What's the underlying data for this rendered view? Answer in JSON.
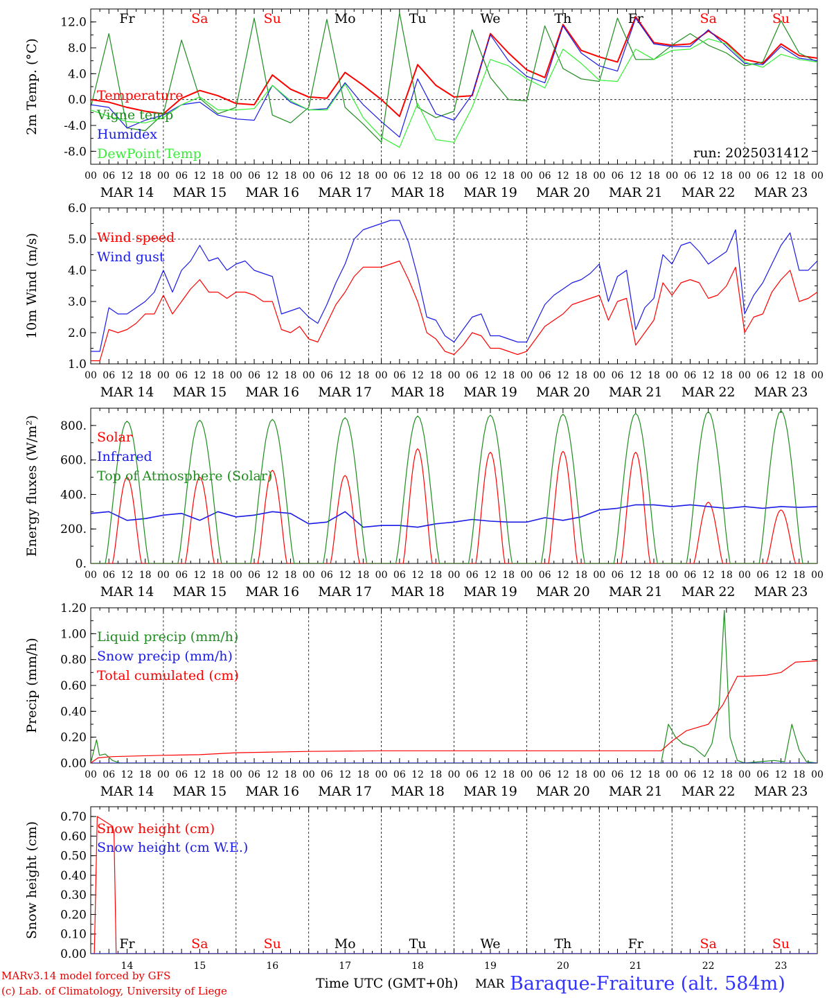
{
  "colors": {
    "red": "#ff0000",
    "blue": "#1a1ae6",
    "green": "#1e8c1e",
    "lightgreen": "#33ee33",
    "darkred": "#e60000",
    "title_blue": "#3333ff"
  },
  "time_axis": {
    "hour_labels": [
      "00",
      "06",
      "12",
      "18"
    ],
    "end_label": "00",
    "date_labels": [
      "MAR 14",
      "MAR 15",
      "MAR 16",
      "MAR 17",
      "MAR 18",
      "MAR 19",
      "MAR 20",
      "MAR 21",
      "MAR 22",
      "MAR 23"
    ],
    "weekdays": [
      "Fr",
      "Sa",
      "Su",
      "Mo",
      "Tu",
      "We",
      "Th",
      "Fr",
      "Sa",
      "Su"
    ],
    "weekday_red": [
      false,
      true,
      true,
      false,
      false,
      false,
      false,
      false,
      true,
      true
    ],
    "day_numbers": [
      "14",
      "15",
      "16",
      "17",
      "18",
      "19",
      "20",
      "21",
      "22",
      "23"
    ]
  },
  "run_label": "run: 2025031412",
  "footer": {
    "line1": "MARv3.14 model forced by GFS",
    "line2": "(c) Lab. of Climatology, University of Liege",
    "xlabel": "Time UTC (GMT+0h)",
    "month": "MAR",
    "station": "Baraque-Fraiture (alt. 584m)"
  },
  "chart_data": [
    {
      "type": "line",
      "ylabel": "2m Temp. (°C)",
      "ylim": [
        -10,
        14
      ],
      "ticks": [
        "-8.0",
        "-4.0",
        "0.0",
        "4.0",
        "8.0",
        "12.0"
      ],
      "tick_values": [
        -8,
        -4,
        0,
        4,
        8,
        12
      ],
      "hline": 0,
      "x_days": [
        0,
        0.25,
        0.5,
        0.75,
        1,
        1.25,
        1.5,
        1.75,
        2,
        2.25,
        2.5,
        2.75,
        3,
        3.25,
        3.5,
        3.75,
        4,
        4.25,
        4.5,
        4.75,
        5,
        5.25,
        5.5,
        5.75,
        6,
        6.25,
        6.5,
        6.75,
        7,
        7.25,
        7.5,
        7.75,
        8,
        8.25,
        8.5,
        8.75,
        9,
        9.25,
        9.5,
        9.75,
        10
      ],
      "series": [
        {
          "name": "Temperature",
          "color": "#ff0000",
          "values": [
            0,
            -0.4,
            -1.2,
            -1.8,
            -2.2,
            0.2,
            1.4,
            0.6,
            -0.6,
            -0.8,
            3.8,
            1.6,
            0.4,
            0.2,
            4.2,
            2.2,
            0,
            -2.6,
            5.4,
            2.2,
            0.4,
            0.6,
            10.2,
            7.2,
            4.6,
            3.4,
            11.6,
            7.6,
            6.6,
            5.8,
            12.8,
            8.8,
            8.4,
            8.6,
            10.6,
            8.8,
            6.2,
            5.6,
            8.6,
            6.8,
            6.4
          ]
        },
        {
          "name": "Vigne temp",
          "color": "#1e8c1e",
          "values": [
            -1.2,
            10.2,
            -4.4,
            -4.8,
            -2.2,
            9.2,
            0.2,
            -2.2,
            -1.2,
            12.6,
            -2.4,
            -3.6,
            -1.2,
            12.4,
            -1.2,
            -3.8,
            -6.6,
            13.4,
            -1.2,
            -2.8,
            -1.8,
            10.8,
            3.4,
            0,
            -0.2,
            11.4,
            4.8,
            3.2,
            2.8,
            12.6,
            6.2,
            6.2,
            8.4,
            10.2,
            8.4,
            7.2,
            5.2,
            5.8,
            12.2,
            7.2,
            5.8
          ]
        },
        {
          "name": "Humidex",
          "color": "#1a1ae6",
          "values": [
            -0.8,
            -1.2,
            -4.4,
            -3.2,
            -2.4,
            -0.8,
            -0.4,
            -2.4,
            -3.0,
            -3.2,
            2.2,
            -0.4,
            -1.6,
            -1.4,
            2.6,
            -0.8,
            -3.4,
            -5.8,
            3.2,
            -2.2,
            -3.2,
            0.8,
            10.0,
            6.0,
            3.6,
            2.6,
            11.4,
            7.2,
            5.2,
            4.4,
            12.6,
            8.6,
            8.2,
            8.2,
            10.8,
            8.2,
            5.6,
            5.4,
            8.2,
            6.4,
            6.0
          ]
        },
        {
          "name": "DewPoint Temp",
          "color": "#33ee33",
          "values": [
            -1.6,
            -2.6,
            -3.4,
            -3.6,
            -2.8,
            -0.8,
            0.4,
            -1.6,
            -1.6,
            -1.4,
            2.2,
            -0.2,
            -1.6,
            -1.6,
            2.4,
            -2.8,
            -5.8,
            -7.4,
            -0.6,
            -6.2,
            -6.6,
            -1.2,
            6.2,
            5.2,
            3.2,
            1.8,
            7.8,
            5.6,
            3.0,
            2.8,
            7.8,
            6.2,
            7.6,
            7.8,
            9.4,
            8.6,
            5.8,
            5.0,
            7.0,
            6.2,
            5.8
          ]
        }
      ]
    },
    {
      "type": "line",
      "ylabel": "10m Wind (m/s)",
      "ylim": [
        1.0,
        6.0
      ],
      "ticks": [
        "1.0",
        "2.0",
        "3.0",
        "4.0",
        "5.0",
        "6.0"
      ],
      "tick_values": [
        1,
        2,
        3,
        4,
        5,
        6
      ],
      "hline": 5,
      "x_days": [
        0,
        0.125,
        0.25,
        0.375,
        0.5,
        0.625,
        0.75,
        0.875,
        1,
        1.125,
        1.25,
        1.375,
        1.5,
        1.625,
        1.75,
        1.875,
        2,
        2.125,
        2.25,
        2.375,
        2.5,
        2.625,
        2.75,
        2.875,
        3,
        3.125,
        3.25,
        3.375,
        3.5,
        3.625,
        3.75,
        3.875,
        4,
        4.125,
        4.25,
        4.375,
        4.5,
        4.625,
        4.75,
        4.875,
        5,
        5.125,
        5.25,
        5.375,
        5.5,
        5.625,
        5.75,
        5.875,
        6,
        6.125,
        6.25,
        6.375,
        6.5,
        6.625,
        6.75,
        6.875,
        7,
        7.125,
        7.25,
        7.375,
        7.5,
        7.625,
        7.75,
        7.875,
        8,
        8.125,
        8.25,
        8.375,
        8.5,
        8.625,
        8.75,
        8.875,
        9,
        9.125,
        9.25,
        9.375,
        9.5,
        9.625,
        9.75,
        9.875,
        10
      ],
      "series": [
        {
          "name": "Wind speed",
          "color": "#ff0000",
          "values": [
            1.1,
            1.1,
            2.1,
            2.0,
            2.1,
            2.3,
            2.6,
            2.6,
            3.2,
            2.6,
            3.0,
            3.4,
            3.7,
            3.3,
            3.3,
            3.1,
            3.3,
            3.3,
            3.2,
            3.0,
            3.0,
            2.1,
            2.0,
            2.2,
            1.8,
            1.7,
            2.3,
            2.9,
            3.3,
            3.8,
            4.1,
            4.1,
            4.1,
            4.2,
            4.3,
            3.7,
            3.0,
            2.0,
            1.8,
            1.4,
            1.3,
            1.6,
            2.0,
            1.9,
            1.5,
            1.5,
            1.4,
            1.3,
            1.4,
            1.8,
            2.2,
            2.4,
            2.6,
            2.9,
            3.0,
            3.1,
            3.2,
            2.4,
            3.0,
            3.1,
            1.6,
            2.0,
            2.4,
            3.6,
            3.2,
            3.6,
            3.7,
            3.6,
            3.1,
            3.2,
            3.5,
            4.1,
            2.0,
            2.5,
            2.6,
            3.3,
            3.7,
            4.0,
            3.0,
            3.1,
            3.3
          ]
        },
        {
          "name": "Wind gust",
          "color": "#1a1ae6",
          "values": [
            1.4,
            1.4,
            2.8,
            2.6,
            2.6,
            2.8,
            3.0,
            3.3,
            4.0,
            3.3,
            4.0,
            4.3,
            4.8,
            4.3,
            4.4,
            4.0,
            4.2,
            4.3,
            4.0,
            3.9,
            3.8,
            2.6,
            2.7,
            2.8,
            2.5,
            2.3,
            2.9,
            3.6,
            4.2,
            5.0,
            5.3,
            5.4,
            5.5,
            5.6,
            5.6,
            4.9,
            3.8,
            2.5,
            2.4,
            1.9,
            1.7,
            2.1,
            2.5,
            2.6,
            1.9,
            1.9,
            1.8,
            1.7,
            1.7,
            2.3,
            2.9,
            3.2,
            3.4,
            3.6,
            3.7,
            3.9,
            4.2,
            3.0,
            3.8,
            4.0,
            2.1,
            2.8,
            3.1,
            4.5,
            4.2,
            4.8,
            4.9,
            4.6,
            4.2,
            4.4,
            4.6,
            5.3,
            2.6,
            3.2,
            3.6,
            4.2,
            4.8,
            5.2,
            4.0,
            4.0,
            4.3
          ]
        }
      ]
    },
    {
      "type": "line",
      "ylabel": "Energy fluxes (W/m²)",
      "ylim": [
        0,
        900
      ],
      "ticks": [
        "0.",
        "200.",
        "400.",
        "600.",
        "800."
      ],
      "tick_values": [
        0,
        200,
        400,
        600,
        800
      ],
      "solar_peak_days": [
        0.5,
        1.5,
        2.5,
        3.5,
        4.5,
        5.5,
        6.5,
        7.5,
        8.5,
        9.5
      ],
      "series": [
        {
          "name": "Solar",
          "color": "#ff0000",
          "values": [
            500,
            500,
            540,
            510,
            665,
            645,
            650,
            645,
            355,
            310
          ]
        },
        {
          "name": "Infrared",
          "color": "#1a1ae6",
          "values": [
            290,
            300,
            250,
            260,
            280,
            290,
            250,
            300,
            270,
            280,
            300,
            290,
            230,
            240,
            300,
            210,
            220,
            220,
            210,
            230,
            240,
            255,
            245,
            240,
            240,
            265,
            250,
            270,
            310,
            320,
            340,
            340,
            330,
            340,
            330,
            320,
            330,
            320,
            330,
            325,
            330
          ]
        },
        {
          "name": "Top of Atmosphere (Solar)",
          "color": "#1e8c1e",
          "values": [
            825,
            830,
            835,
            845,
            855,
            860,
            865,
            870,
            880,
            885
          ]
        }
      ]
    },
    {
      "type": "line",
      "ylabel": "Precip (mm/h)",
      "ylim": [
        0,
        1.2
      ],
      "ticks": [
        "0.00",
        "0.20",
        "0.40",
        "0.60",
        "0.80",
        "1.00",
        "1.20"
      ],
      "tick_values": [
        0,
        0.2,
        0.4,
        0.6,
        0.8,
        1.0,
        1.2
      ],
      "series": [
        {
          "name": "Liquid precip (mm/h)",
          "color": "#1e8c1e",
          "x": [
            0,
            0.08,
            0.12,
            0.2,
            0.3,
            0.4,
            1,
            2,
            3,
            4,
            5,
            6,
            7,
            7.85,
            7.95,
            8.05,
            8.15,
            8.3,
            8.45,
            8.55,
            8.65,
            8.72,
            8.8,
            8.9,
            9.0,
            9.2,
            9.4,
            9.55,
            9.65,
            9.75,
            9.85,
            10
          ],
          "values": [
            0,
            0.18,
            0.06,
            0.07,
            0.02,
            0,
            0,
            0,
            0,
            0,
            0,
            0,
            0,
            0,
            0.3,
            0.2,
            0.15,
            0.12,
            0.05,
            0.15,
            0.45,
            1.18,
            0.2,
            0.02,
            0,
            0.01,
            0.02,
            0.01,
            0.3,
            0.1,
            0.01,
            0
          ]
        },
        {
          "name": "Snow precip (mm/h)",
          "color": "#1a1ae6",
          "x": [
            0,
            10
          ],
          "values": [
            0,
            0
          ]
        },
        {
          "name": "Total cumulated (cm)",
          "color": "#ff0000",
          "x": [
            0,
            0.1,
            0.3,
            1,
            1.5,
            2,
            3,
            4,
            5,
            6,
            7,
            7.85,
            8,
            8.2,
            8.5,
            8.7,
            8.9,
            9,
            9.3,
            9.5,
            9.7,
            10
          ],
          "values": [
            0,
            0.04,
            0.05,
            0.06,
            0.065,
            0.08,
            0.09,
            0.095,
            0.095,
            0.095,
            0.095,
            0.095,
            0.17,
            0.25,
            0.3,
            0.45,
            0.67,
            0.67,
            0.68,
            0.7,
            0.78,
            0.79
          ]
        }
      ]
    },
    {
      "type": "line",
      "ylabel": "Snow height (cm)",
      "ylim": [
        0,
        0.75
      ],
      "ticks": [
        "0.00",
        "0.10",
        "0.20",
        "0.30",
        "0.40",
        "0.50",
        "0.60",
        "0.70"
      ],
      "tick_values": [
        0,
        0.1,
        0.2,
        0.3,
        0.4,
        0.5,
        0.6,
        0.7
      ],
      "series": [
        {
          "name": "Snow height (cm)",
          "color": "#ff0000",
          "x": [
            0,
            0.05,
            0.09,
            0.3,
            0.32,
            0.35,
            10
          ],
          "values": [
            0,
            0,
            0.7,
            0.65,
            0.62,
            0,
            0
          ]
        },
        {
          "name": "Snow height (cm W.E.)",
          "color": "#1a1ae6",
          "x": [
            0,
            10
          ],
          "values": [
            0,
            0
          ]
        }
      ]
    }
  ]
}
